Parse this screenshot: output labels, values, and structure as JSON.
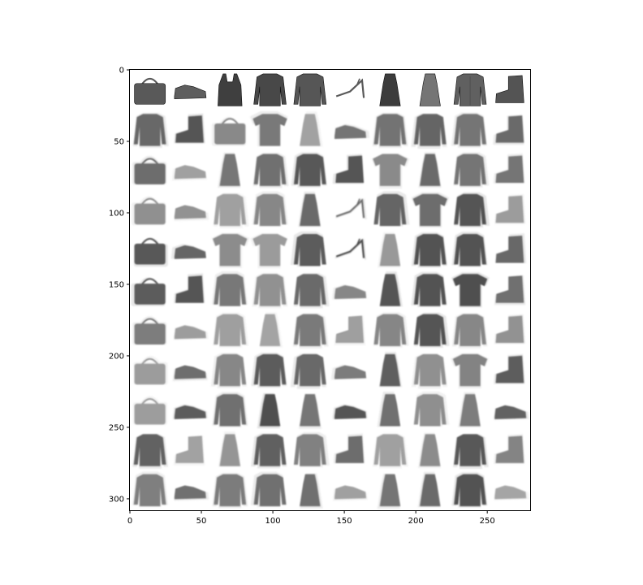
{
  "figure": {
    "x_axis": {
      "range": [
        0,
        280
      ],
      "ticks": [
        {
          "value": 0,
          "label": "0"
        },
        {
          "value": 50,
          "label": "50"
        },
        {
          "value": 100,
          "label": "100"
        },
        {
          "value": 150,
          "label": "150"
        },
        {
          "value": 200,
          "label": "200"
        },
        {
          "value": 250,
          "label": "250"
        }
      ]
    },
    "y_axis": {
      "range": [
        0,
        308
      ],
      "inverted": true,
      "ticks": [
        {
          "value": 0,
          "label": "0"
        },
        {
          "value": 50,
          "label": "50"
        },
        {
          "value": 100,
          "label": "100"
        },
        {
          "value": 150,
          "label": "150"
        },
        {
          "value": 200,
          "label": "200"
        },
        {
          "value": 250,
          "label": "250"
        },
        {
          "value": 300,
          "label": "300"
        }
      ]
    },
    "grid_rows": 11,
    "grid_cols": 10,
    "colormap": "grayscale",
    "background_color": "#ffffff",
    "row0_items": [
      "bag",
      "sneaker",
      "top",
      "pullover",
      "pullover",
      "sandal",
      "dress",
      "dress",
      "coat",
      "ankle-boot"
    ],
    "generated_items": [
      [
        "shirt",
        "ankle-boot",
        "bag",
        "tshirt",
        "dress",
        "sneaker",
        "pullover",
        "pullover",
        "pullover",
        "ankle-boot"
      ],
      [
        "bag",
        "sneaker",
        "dress",
        "pullover",
        "pullover",
        "ankle-boot",
        "tshirt",
        "dress",
        "pullover",
        "ankle-boot"
      ],
      [
        "bag",
        "sneaker",
        "pullover",
        "pullover",
        "dress",
        "sandal",
        "pullover",
        "tshirt",
        "pullover",
        "ankle-boot"
      ],
      [
        "bag",
        "sneaker",
        "tshirt",
        "tshirt",
        "pullover",
        "sandal",
        "dress",
        "pullover",
        "pullover",
        "ankle-boot"
      ],
      [
        "bag",
        "ankle-boot",
        "pullover",
        "pullover",
        "pullover",
        "sneaker",
        "dress",
        "pullover",
        "tshirt",
        "ankle-boot"
      ],
      [
        "bag",
        "sneaker",
        "pullover",
        "dress",
        "pullover",
        "ankle-boot",
        "pullover",
        "pullover",
        "pullover",
        "ankle-boot"
      ],
      [
        "bag",
        "sneaker",
        "shirt",
        "pullover",
        "pullover",
        "sneaker",
        "dress",
        "pullover",
        "tshirt",
        "ankle-boot"
      ],
      [
        "bag",
        "sneaker",
        "pullover",
        "dress",
        "dress",
        "sneaker",
        "dress",
        "pullover",
        "dress",
        "sneaker"
      ],
      [
        "pullover",
        "ankle-boot",
        "dress",
        "pullover",
        "pullover",
        "ankle-boot",
        "pullover",
        "dress",
        "pullover",
        "ankle-boot"
      ],
      [
        "shirt",
        "sneaker",
        "pullover",
        "pullover",
        "dress",
        "sneaker",
        "dress",
        "dress",
        "pullover",
        "sneaker"
      ]
    ]
  }
}
